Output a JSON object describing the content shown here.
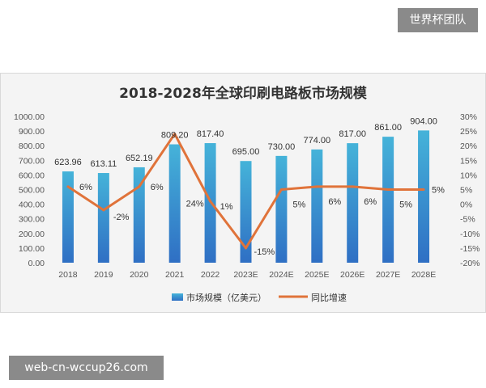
{
  "watermarks": {
    "top": "世界杯团队",
    "bottom": "web-cn-wccup26.com"
  },
  "chart_data": {
    "type": "bar",
    "title": "2018-2028年全球印刷电路板市场规模",
    "categories": [
      "2018",
      "2019",
      "2020",
      "2021",
      "2022",
      "2023E",
      "2024E",
      "2025E",
      "2026E",
      "2027E",
      "2028E"
    ],
    "series": [
      {
        "name": "市场规模（亿美元）",
        "type": "bar",
        "axis": "left",
        "values": [
          623.96,
          613.11,
          652.19,
          809.2,
          817.4,
          695.0,
          730.0,
          774.0,
          817.0,
          861.0,
          904.0
        ],
        "labels": [
          "623.96",
          "613.11",
          "652.19",
          "809.20",
          "817.40",
          "695.00",
          "730.00",
          "774.00",
          "817.00",
          "861.00",
          "904.00"
        ],
        "color": "#3aa0cc"
      },
      {
        "name": "同比增速",
        "type": "line",
        "axis": "right",
        "values": [
          6,
          -2,
          6,
          24,
          1,
          -15,
          5,
          6,
          6,
          5,
          5
        ],
        "labels": [
          "6%",
          "-2%",
          "6%",
          "24%",
          "1%",
          "-15%",
          "5%",
          "6%",
          "6%",
          "5%",
          "5%"
        ],
        "color": "#e0733a"
      }
    ],
    "left_axis": {
      "ylim": [
        0,
        1000
      ],
      "ticks": [
        "0.00",
        "100.00",
        "200.00",
        "300.00",
        "400.00",
        "500.00",
        "600.00",
        "700.00",
        "800.00",
        "900.00",
        "1000.00"
      ]
    },
    "right_axis": {
      "ylim": [
        -20,
        30
      ],
      "ticks": [
        "-20%",
        "-15%",
        "-10%",
        "-5%",
        "0%",
        "5%",
        "10%",
        "15%",
        "20%",
        "25%",
        "30%"
      ]
    },
    "legend_position": "bottom",
    "grid": false
  }
}
